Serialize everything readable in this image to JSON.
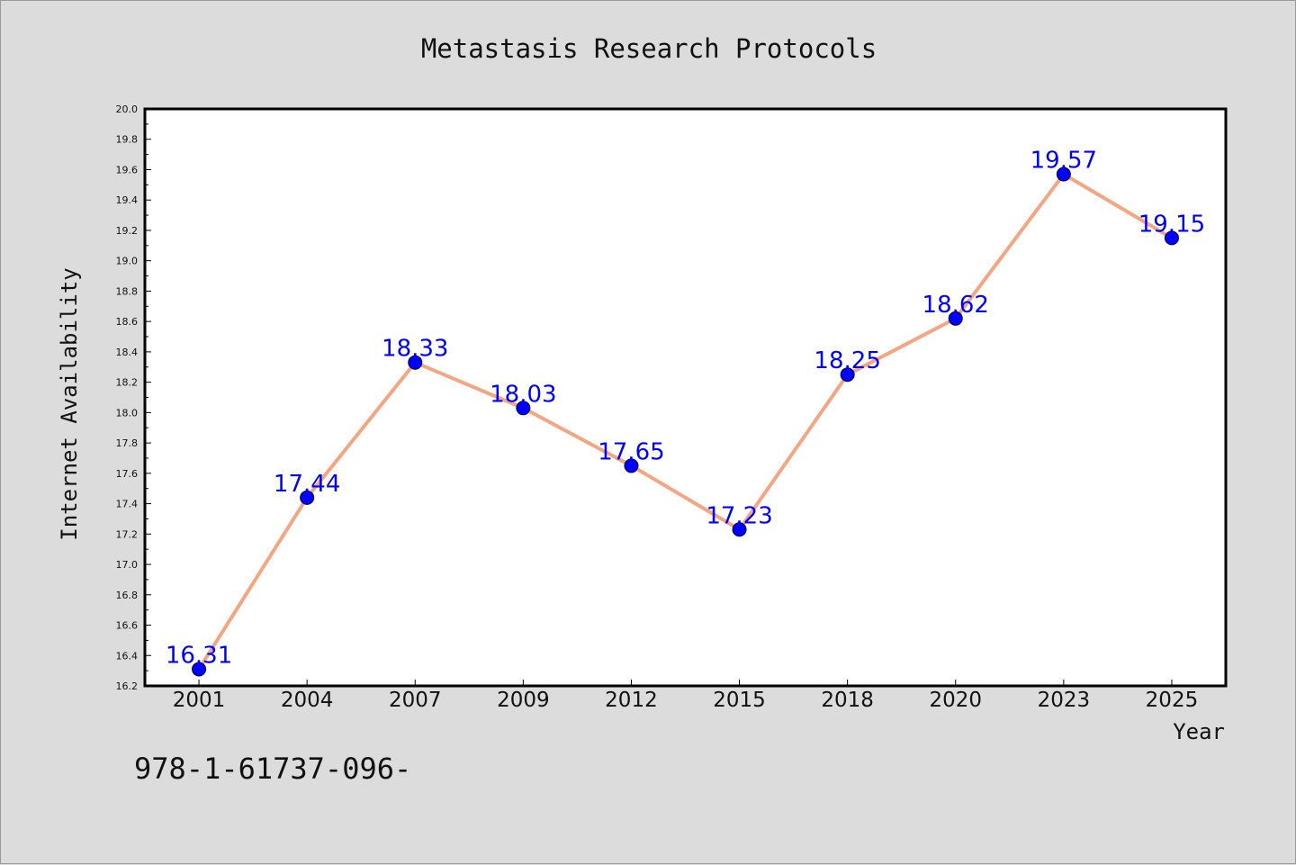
{
  "chart_data": {
    "type": "line",
    "title": "Metastasis Research Protocols",
    "xlabel": "Year",
    "ylabel": "Internet Availability",
    "categories": [
      "2001",
      "2004",
      "2007",
      "2009",
      "2012",
      "2015",
      "2018",
      "2020",
      "2023",
      "2025"
    ],
    "series": [
      {
        "values": [
          16.31,
          17.44,
          18.33,
          18.03,
          17.65,
          17.23,
          18.25,
          18.62,
          19.57,
          19.15
        ]
      }
    ],
    "ylim": [
      16.2,
      20.0
    ],
    "yticks": [
      "16.2",
      "16.4",
      "16.6",
      "16.8",
      "17.0",
      "17.2",
      "17.4",
      "17.6",
      "17.8",
      "18.0",
      "18.2",
      "18.4",
      "18.6",
      "18.8",
      "19.0",
      "19.2",
      "19.4",
      "19.6",
      "19.8",
      "20.0"
    ],
    "data_labels": [
      "16.31",
      "17.44",
      "18.33",
      "18.03",
      "17.65",
      "17.23",
      "18.25",
      "18.62",
      "19.57",
      "19.15"
    ],
    "grid": false,
    "legend": "none",
    "colors": {
      "line": "#f4a582",
      "marker": "#0000ff",
      "label": "#0000ff",
      "background": "#dcdcdc",
      "plot_background": "#ffffff"
    }
  },
  "footer_text": "978-1-61737-096-"
}
